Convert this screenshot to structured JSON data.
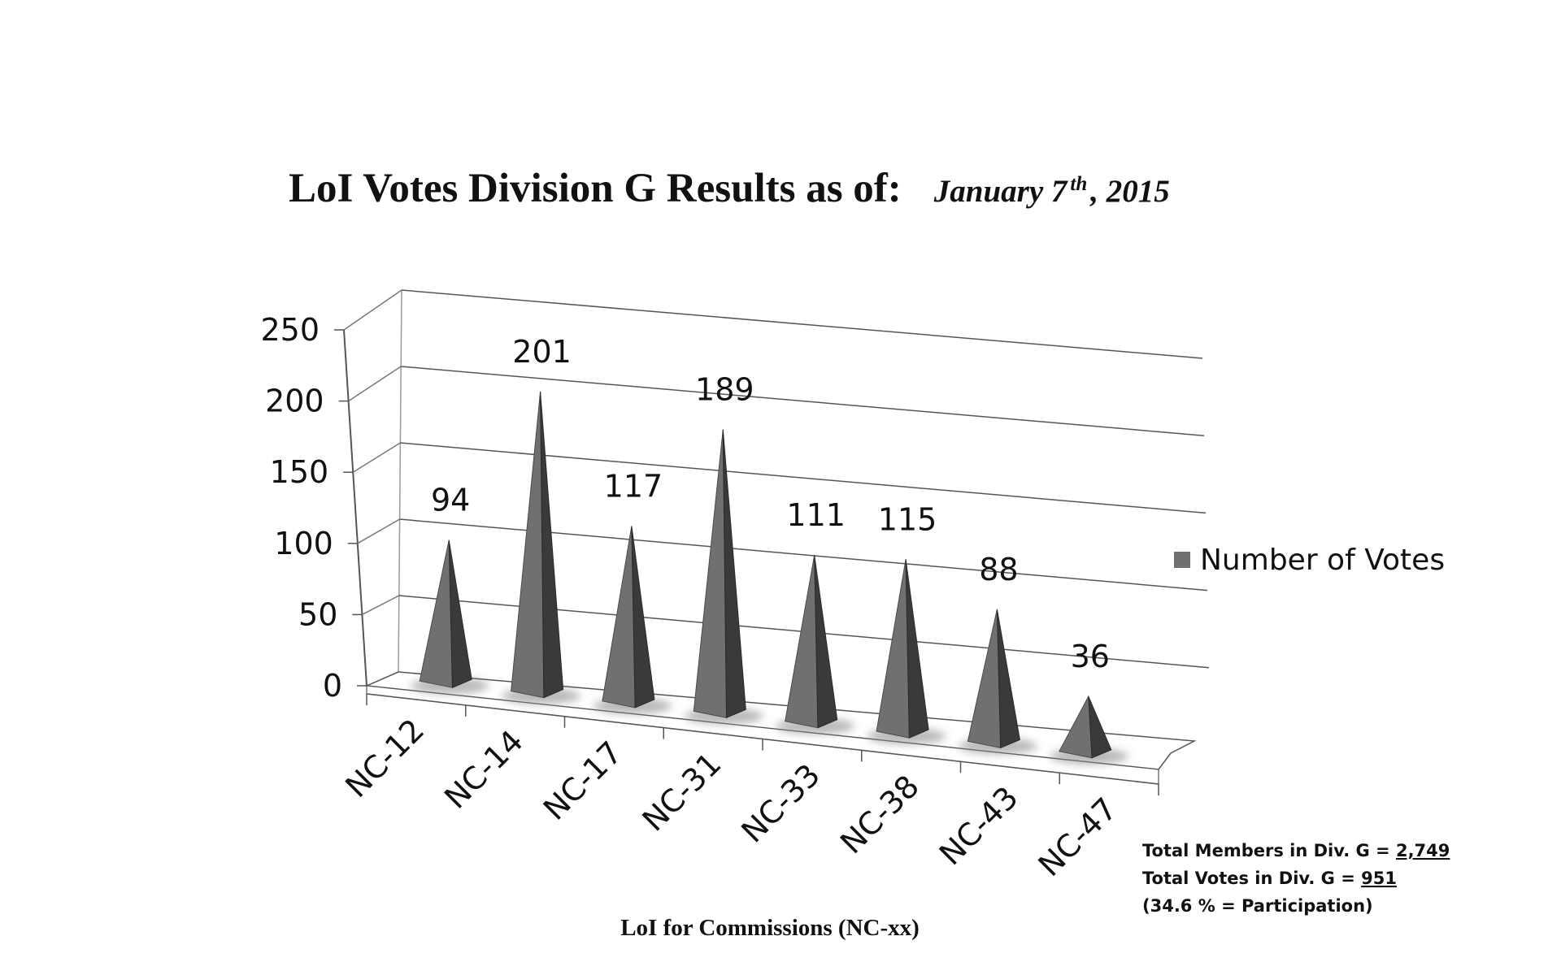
{
  "title": {
    "main": "LoI Votes Division G Results as of:",
    "date_prefix": "January 7",
    "date_sup": "th",
    "date_suffix": " , 2015"
  },
  "chart_data": {
    "type": "bar",
    "style": "3d-pyramid",
    "categories": [
      "NC-12",
      "NC-14",
      "NC-17",
      "NC-31",
      "NC-33",
      "NC-38",
      "NC-43",
      "NC-47"
    ],
    "series": [
      {
        "name": "Number of Votes",
        "values": [
          94,
          201,
          117,
          189,
          111,
          115,
          88,
          36
        ],
        "color": "#707070"
      }
    ],
    "data_labels": [
      "94",
      "201",
      "117",
      "189",
      "111",
      "115",
      "88",
      "36"
    ],
    "y_ticks": [
      "0",
      "50",
      "100",
      "150",
      "200",
      "250"
    ],
    "ylim": [
      0,
      250
    ],
    "xlabel": "LoI for Commissions (NC-xx)",
    "ylabel": "",
    "grid": true,
    "legend_position": "right"
  },
  "notes": {
    "members_prefix": "Total Members in Div. G = ",
    "members_value": "2,749",
    "votes_prefix": "Total Votes in Div. G = ",
    "votes_value": "951",
    "participation": "(34.6 % = Participation)"
  },
  "colors": {
    "pyramid_front": "#707070",
    "pyramid_side": "#3a3a3a",
    "gridline": "#555555",
    "floor": "#ffffff"
  }
}
